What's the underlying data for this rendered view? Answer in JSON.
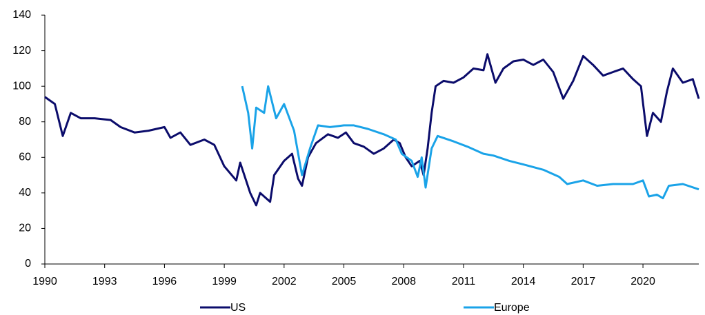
{
  "chart_data": {
    "type": "line",
    "xlim": [
      1990,
      2022.8
    ],
    "xticks": [
      1990,
      1993,
      1996,
      1999,
      2002,
      2005,
      2008,
      2011,
      2014,
      2017,
      2020
    ],
    "ylim": [
      0,
      140
    ],
    "yticks": [
      0,
      20,
      40,
      60,
      80,
      100,
      120,
      140
    ],
    "legend": "bottom",
    "series": [
      {
        "name": "US",
        "color": "#0b0c6b",
        "x": [
          1990,
          1990.5,
          1990.9,
          1991.3,
          1991.8,
          1992.5,
          1993.3,
          1993.8,
          1994.5,
          1995.2,
          1996,
          1996.3,
          1996.8,
          1997.3,
          1998,
          1998.5,
          1999,
          1999.6,
          1999.8,
          2000.3,
          2000.6,
          2000.8,
          2001.3,
          2001.5,
          2002,
          2002.4,
          2002.7,
          2002.9,
          2003.2,
          2003.6,
          2004.2,
          2004.7,
          2005.1,
          2005.5,
          2006,
          2006.5,
          2007,
          2007.5,
          2007.8,
          2008.1,
          2008.4,
          2008.8,
          2009,
          2009.2,
          2009.4,
          2009.6,
          2010,
          2010.5,
          2011,
          2011.5,
          2012,
          2012.2,
          2012.6,
          2013,
          2013.5,
          2014,
          2014.5,
          2015,
          2015.5,
          2016,
          2016.5,
          2017,
          2017.5,
          2018,
          2018.5,
          2019,
          2019.5,
          2019.9,
          2020.2,
          2020.5,
          2020.9,
          2021.2,
          2021.5,
          2022,
          2022.5,
          2022.8
        ],
        "values": [
          94,
          90,
          72,
          85,
          82,
          82,
          81,
          77,
          74,
          75,
          77,
          71,
          74,
          67,
          70,
          67,
          55,
          47,
          57,
          40,
          33,
          40,
          35,
          50,
          58,
          62,
          48,
          44,
          60,
          68,
          73,
          71,
          74,
          68,
          66,
          62,
          65,
          70,
          68,
          60,
          55,
          58,
          50,
          65,
          85,
          100,
          103,
          102,
          105,
          110,
          109,
          118,
          102,
          110,
          114,
          115,
          112,
          115,
          108,
          93,
          103,
          117,
          112,
          106,
          108,
          110,
          104,
          100,
          72,
          85,
          80,
          97,
          110,
          102,
          104,
          93
        ]
      },
      {
        "name": "Europe",
        "color": "#1aa3e8",
        "x": [
          1999.9,
          2000.2,
          2000.4,
          2000.6,
          2001,
          2001.2,
          2001.6,
          2002,
          2002.5,
          2002.9,
          2003.3,
          2003.7,
          2004.3,
          2005,
          2005.5,
          2006.2,
          2007,
          2007.6,
          2007.9,
          2008.4,
          2008.7,
          2008.9,
          2009.1,
          2009.4,
          2009.7,
          2010.5,
          2011.2,
          2012,
          2012.5,
          2013.3,
          2014,
          2015,
          2015.8,
          2016.2,
          2017,
          2017.7,
          2018.5,
          2019.5,
          2020,
          2020.3,
          2020.7,
          2021,
          2021.3,
          2022,
          2022.8
        ],
        "values": [
          100,
          85,
          65,
          88,
          85,
          100,
          82,
          90,
          75,
          50,
          65,
          78,
          77,
          78,
          78,
          76,
          73,
          70,
          62,
          58,
          49,
          60,
          43,
          65,
          72,
          69,
          66,
          62,
          61,
          58,
          56,
          53,
          49,
          45,
          47,
          44,
          45,
          45,
          47,
          38,
          39,
          37,
          44,
          45,
          42
        ]
      }
    ]
  }
}
